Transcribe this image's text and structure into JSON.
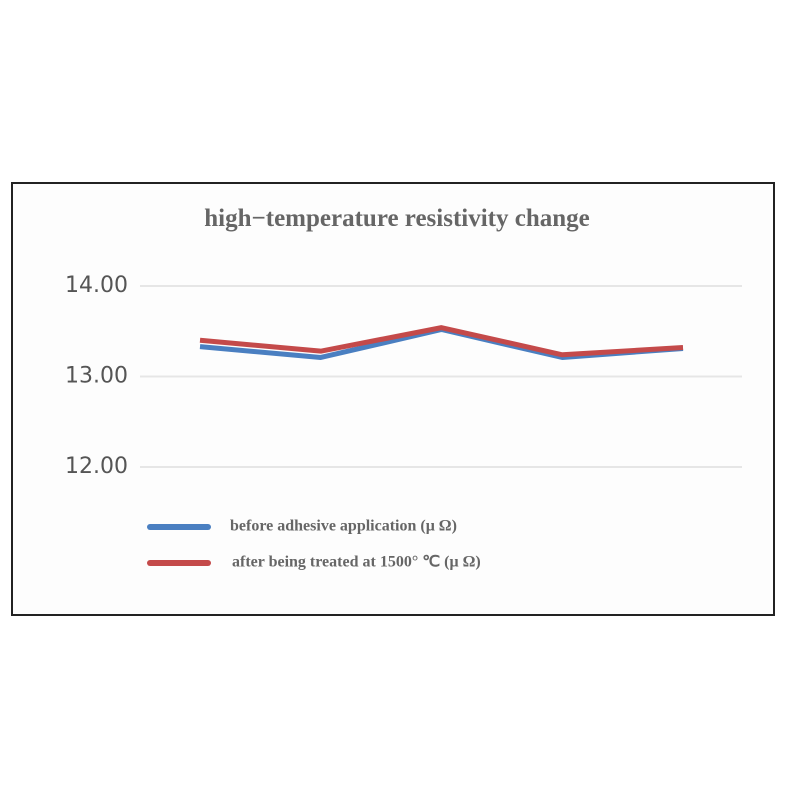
{
  "chart_data": {
    "type": "line",
    "title": "high−temperature resistivity change",
    "categories": [
      null,
      null,
      null,
      null,
      null
    ],
    "series": [
      {
        "name": "before adhesive application (μ Ω)",
        "color": "#4a7fc1",
        "values": [
          13.33,
          13.21,
          13.52,
          13.21,
          13.31
        ]
      },
      {
        "name": "after being treated at 1500°  ℃ (μ Ω)",
        "color": "#c44a4a",
        "values": [
          13.4,
          13.28,
          13.54,
          13.24,
          13.32
        ]
      }
    ],
    "ylim": [
      12,
      14
    ],
    "yticks": [
      {
        "value": 12,
        "label": "12.00"
      },
      {
        "value": 13,
        "label": "13.00"
      },
      {
        "value": 14,
        "label": "14.00"
      }
    ],
    "grid": true
  }
}
